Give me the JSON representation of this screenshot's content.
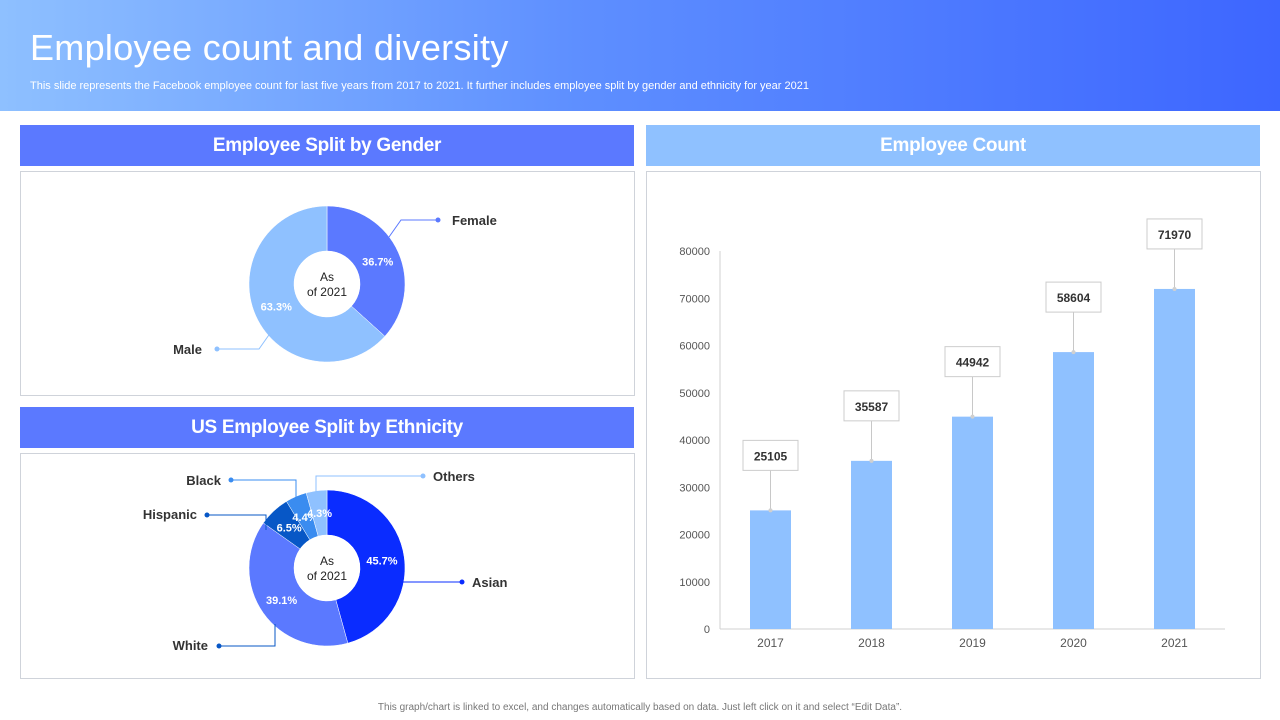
{
  "header": {
    "title": "Employee count and diversity",
    "subtitle": "This slide represents the Facebook employee count for last five years from 2017 to 2021. It further includes employee split by gender and ethnicity for year 2021"
  },
  "footer": {
    "note": "This graph/chart is linked to excel, and changes automatically based on data. Just left click on it and select “Edit Data”."
  },
  "colors": {
    "banner_dark": "#5b79ff",
    "banner_light": "#8fc1ff",
    "bar": "#8fc1ff"
  },
  "chart_data": [
    {
      "type": "pie",
      "title": "Employee Split by Gender",
      "center_label": [
        "As",
        "of 2021"
      ],
      "slices": [
        {
          "name": "Female",
          "value": 36.7,
          "label": "36.7%",
          "color": "#5b79ff"
        },
        {
          "name": "Male",
          "value": 63.3,
          "label": "63.3%",
          "color": "#8fc1ff"
        }
      ]
    },
    {
      "type": "pie",
      "title": "US Employee Split by Ethnicity",
      "center_label": [
        "As",
        "of 2021"
      ],
      "slices": [
        {
          "name": "Asian",
          "value": 45.7,
          "label": "45.7%",
          "color": "#0a2cff"
        },
        {
          "name": "White",
          "value": 39.1,
          "label": "39.1%",
          "color": "#5b79ff"
        },
        {
          "name": "Hispanic",
          "value": 6.5,
          "label": "6.5%",
          "color": "#0757c6"
        },
        {
          "name": "Black",
          "value": 4.4,
          "label": "4.4%",
          "color": "#3a8cf0"
        },
        {
          "name": "Others",
          "value": 4.3,
          "label": "4.3%",
          "color": "#8fc1ff"
        }
      ]
    },
    {
      "type": "bar",
      "title": "Employee Count",
      "categories": [
        "2017",
        "2018",
        "2019",
        "2020",
        "2021"
      ],
      "values": [
        25105,
        35587,
        44942,
        58604,
        71970
      ],
      "ylim": [
        0,
        80000
      ],
      "yticks": [
        0,
        10000,
        20000,
        30000,
        40000,
        50000,
        60000,
        70000,
        80000
      ],
      "xlabel": "",
      "ylabel": "",
      "grid": false
    }
  ]
}
